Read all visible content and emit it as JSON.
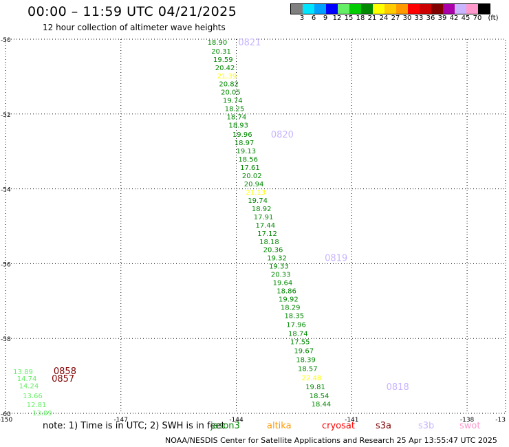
{
  "title": "00:00 – 11:59 UTC 04/21/2025",
  "subtitle": "12 hour collection of altimeter wave heights",
  "note": "note: 1) Time is in UTC; 2) SWH is in feet",
  "credit": "NOAA/NESDIS Center for Satellite Applications and Research    25 Apr 13:55:47 UTC 2025",
  "legend": {
    "unit": "(ft)",
    "bins": [
      {
        "label": "3",
        "color": "#808080"
      },
      {
        "label": "6",
        "color": "#00e5ff"
      },
      {
        "label": "9",
        "color": "#00a0ff"
      },
      {
        "label": "12",
        "color": "#0000ff"
      },
      {
        "label": "15",
        "color": "#66ee66"
      },
      {
        "label": "18",
        "color": "#00cc00"
      },
      {
        "label": "21",
        "color": "#008800"
      },
      {
        "label": "24",
        "color": "#ffff00"
      },
      {
        "label": "27",
        "color": "#ffcc00"
      },
      {
        "label": "30",
        "color": "#ff9900"
      },
      {
        "label": "33",
        "color": "#ff0000"
      },
      {
        "label": "36",
        "color": "#cc0000"
      },
      {
        "label": "39",
        "color": "#800000"
      },
      {
        "label": "42",
        "color": "#aa00aa"
      },
      {
        "label": "45",
        "color": "#c8b4ff"
      },
      {
        "label": "70",
        "color": "#ff99cc"
      },
      {
        "label": "",
        "color": "#000000"
      }
    ]
  },
  "satellites": [
    {
      "name": "jason3",
      "label": "jason3",
      "color": "#008800"
    },
    {
      "name": "altika",
      "label": "altika",
      "color": "#ff9900"
    },
    {
      "name": "cryosat",
      "label": "cryosat",
      "color": "#ff0000"
    },
    {
      "name": "s3a",
      "label": "s3a",
      "color": "#800000"
    },
    {
      "name": "s3b",
      "label": "s3b",
      "color": "#c8b4ff"
    },
    {
      "name": "swot",
      "label": "swot",
      "color": "#ff99cc"
    }
  ],
  "map": {
    "lon_range": [
      -150,
      -137
    ],
    "lat_range": [
      -60,
      -50
    ],
    "lon_ticks": [
      {
        "value": -150,
        "label": "-150"
      },
      {
        "value": -147,
        "label": "-147"
      },
      {
        "value": -144,
        "label": "-144"
      },
      {
        "value": -141,
        "label": "-141"
      },
      {
        "value": -138,
        "label": "-138"
      },
      {
        "value": -137,
        "label": "-13"
      }
    ],
    "lat_ticks": [
      {
        "value": -50,
        "label": "-50"
      },
      {
        "value": -52,
        "label": "-52"
      },
      {
        "value": -54,
        "label": "-54"
      },
      {
        "value": -56,
        "label": "-56"
      },
      {
        "value": -58,
        "label": "-58"
      },
      {
        "value": -60,
        "label": "-60"
      }
    ],
    "grid": true,
    "observations": [
      {
        "lon": -144.75,
        "lat": -50.07,
        "text": "18.90",
        "color": "#008800"
      },
      {
        "lon": -144.65,
        "lat": -50.31,
        "text": "20.31",
        "color": "#008800"
      },
      {
        "lon": -144.6,
        "lat": -50.53,
        "text": "19.59",
        "color": "#008800"
      },
      {
        "lon": -144.55,
        "lat": -50.75,
        "text": "20.42",
        "color": "#008800"
      },
      {
        "lon": -144.5,
        "lat": -50.97,
        "text": "21.39",
        "color": "#ffff00"
      },
      {
        "lon": -144.45,
        "lat": -51.19,
        "text": "20.82",
        "color": "#008800"
      },
      {
        "lon": -144.4,
        "lat": -51.41,
        "text": "20.05",
        "color": "#008800"
      },
      {
        "lon": -144.35,
        "lat": -51.63,
        "text": "19.74",
        "color": "#008800"
      },
      {
        "lon": -144.3,
        "lat": -51.85,
        "text": "18.25",
        "color": "#008800"
      },
      {
        "lon": -144.25,
        "lat": -52.07,
        "text": "18.74",
        "color": "#008800"
      },
      {
        "lon": -144.2,
        "lat": -52.29,
        "text": "18.93",
        "color": "#008800"
      },
      {
        "lon": -144.1,
        "lat": -52.54,
        "text": "19.96",
        "color": "#008800"
      },
      {
        "lon": -144.05,
        "lat": -52.76,
        "text": "18.97",
        "color": "#008800"
      },
      {
        "lon": -144.0,
        "lat": -52.98,
        "text": "19.13",
        "color": "#008800"
      },
      {
        "lon": -143.95,
        "lat": -53.2,
        "text": "18.56",
        "color": "#008800"
      },
      {
        "lon": -143.9,
        "lat": -53.42,
        "text": "17.61",
        "color": "#008800"
      },
      {
        "lon": -143.85,
        "lat": -53.64,
        "text": "20.02",
        "color": "#008800"
      },
      {
        "lon": -143.8,
        "lat": -53.86,
        "text": "20.94",
        "color": "#008800"
      },
      {
        "lon": -143.75,
        "lat": -54.08,
        "text": "21.13",
        "color": "#ffff00"
      },
      {
        "lon": -143.7,
        "lat": -54.3,
        "text": "19.74",
        "color": "#008800"
      },
      {
        "lon": -143.6,
        "lat": -54.52,
        "text": "18.92",
        "color": "#008800"
      },
      {
        "lon": -143.55,
        "lat": -54.74,
        "text": "17.91",
        "color": "#008800"
      },
      {
        "lon": -143.5,
        "lat": -54.96,
        "text": "17.44",
        "color": "#008800"
      },
      {
        "lon": -143.45,
        "lat": -55.18,
        "text": "17.12",
        "color": "#008800"
      },
      {
        "lon": -143.4,
        "lat": -55.4,
        "text": "18.18",
        "color": "#008800"
      },
      {
        "lon": -143.3,
        "lat": -55.62,
        "text": "20.36",
        "color": "#008800"
      },
      {
        "lon": -143.2,
        "lat": -55.84,
        "text": "19.32",
        "color": "#008800"
      },
      {
        "lon": -143.15,
        "lat": -56.06,
        "text": "19.33",
        "color": "#008800"
      },
      {
        "lon": -143.1,
        "lat": -56.28,
        "text": "20.33",
        "color": "#008800"
      },
      {
        "lon": -143.05,
        "lat": -56.5,
        "text": "19.64",
        "color": "#008800"
      },
      {
        "lon": -142.95,
        "lat": -56.72,
        "text": "18.86",
        "color": "#008800"
      },
      {
        "lon": -142.9,
        "lat": -56.94,
        "text": "19.92",
        "color": "#008800"
      },
      {
        "lon": -142.85,
        "lat": -57.16,
        "text": "18.29",
        "color": "#008800"
      },
      {
        "lon": -142.75,
        "lat": -57.38,
        "text": "18.35",
        "color": "#008800"
      },
      {
        "lon": -142.7,
        "lat": -57.62,
        "text": "17.96",
        "color": "#008800"
      },
      {
        "lon": -142.65,
        "lat": -57.86,
        "text": "18.74",
        "color": "#008800"
      },
      {
        "lon": -142.6,
        "lat": -58.08,
        "text": "17.55",
        "color": "#008800"
      },
      {
        "lon": -142.5,
        "lat": -58.32,
        "text": "19.67",
        "color": "#008800"
      },
      {
        "lon": -142.45,
        "lat": -58.56,
        "text": "18.39",
        "color": "#008800"
      },
      {
        "lon": -142.4,
        "lat": -58.8,
        "text": "18.57",
        "color": "#008800"
      },
      {
        "lon": -142.3,
        "lat": -59.04,
        "text": "22.48",
        "color": "#ffff00"
      },
      {
        "lon": -142.2,
        "lat": -59.28,
        "text": "19.81",
        "color": "#008800"
      },
      {
        "lon": -142.1,
        "lat": -59.52,
        "text": "18.54",
        "color": "#008800"
      },
      {
        "lon": -142.05,
        "lat": -59.74,
        "text": "18.44",
        "color": "#008800"
      },
      {
        "lon": -149.8,
        "lat": -58.88,
        "text": "13.89",
        "color": "#66ee66"
      },
      {
        "lon": -149.7,
        "lat": -59.06,
        "text": "14.74",
        "color": "#66ee66"
      },
      {
        "lon": -149.65,
        "lat": -59.26,
        "text": "14.24",
        "color": "#66ee66"
      },
      {
        "lon": -149.55,
        "lat": -59.52,
        "text": "13.66",
        "color": "#66ee66"
      },
      {
        "lon": -149.45,
        "lat": -59.76,
        "text": "12.81",
        "color": "#66ee66"
      },
      {
        "lon": -149.3,
        "lat": -59.98,
        "text": "13.09",
        "color": "#66ee66"
      }
    ],
    "time_labels": [
      {
        "lon": -143.95,
        "lat": -50.07,
        "text": "0821",
        "color": "#c8b4ff"
      },
      {
        "lon": -143.1,
        "lat": -52.54,
        "text": "0820",
        "color": "#c8b4ff"
      },
      {
        "lon": -141.7,
        "lat": -55.84,
        "text": "0819",
        "color": "#c8b4ff"
      },
      {
        "lon": -140.1,
        "lat": -59.28,
        "text": "0818",
        "color": "#c8b4ff"
      },
      {
        "lon": -148.75,
        "lat": -58.86,
        "text": "0858",
        "color": "#800000"
      },
      {
        "lon": -148.8,
        "lat": -59.06,
        "text": "0857",
        "color": "#800000"
      }
    ]
  }
}
